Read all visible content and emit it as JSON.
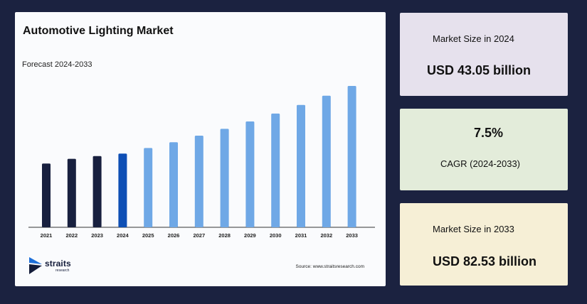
{
  "chart_data": {
    "type": "bar",
    "title": "Automotive Lighting Market",
    "subtitle": "Forecast 2024-2033",
    "categories": [
      "2021",
      "2022",
      "2023",
      "2024",
      "2025",
      "2026",
      "2027",
      "2028",
      "2029",
      "2030",
      "2031",
      "2032",
      "2033"
    ],
    "values": [
      37.2,
      40.0,
      41.6,
      43.05,
      46.3,
      49.7,
      53.5,
      57.5,
      61.8,
      66.4,
      71.4,
      76.8,
      82.53
    ],
    "xlabel": "",
    "ylabel": "",
    "grid": false,
    "colors": {
      "historical": "#18203f",
      "base_year": "#0e4fb5",
      "forecast": "#6fa8e6"
    }
  },
  "branding": {
    "logo_word": "straits",
    "logo_sub": "research",
    "source": "Source: www.straitsresearch.com"
  },
  "cards": {
    "size_2024": {
      "label": "Market Size in 2024",
      "value": "USD 43.05 billion"
    },
    "cagr": {
      "value": "7.5%",
      "label": "CAGR (2024-2033)"
    },
    "size_2033": {
      "label": "Market Size in 2033",
      "value": "USD 82.53 billion"
    }
  }
}
